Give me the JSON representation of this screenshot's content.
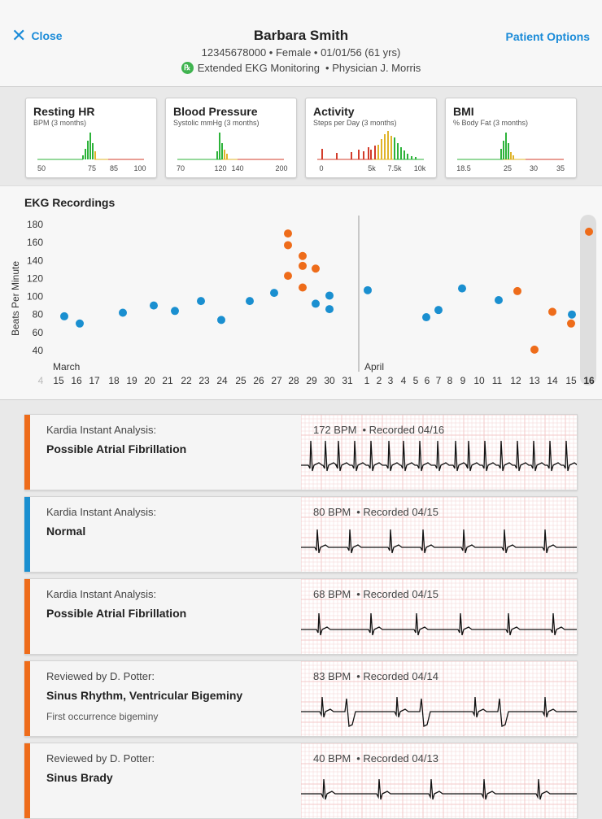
{
  "header": {
    "close_label": "Close",
    "options_label": "Patient Options",
    "patient_name": "Barbara Smith",
    "patient_info": "12345678000  •  Female  •  01/01/56 (61 yrs)",
    "monitoring": "Extended EKG Monitoring",
    "physician": "•  Physician J. Morris",
    "rx_glyph": "℞"
  },
  "cards": [
    {
      "title": "Resting HR",
      "subtitle": "BPM (3 months)",
      "ticks": [
        "50",
        "75",
        "85",
        "100"
      ]
    },
    {
      "title": "Blood Pressure",
      "subtitle": "Systolic mmHg (3 months)",
      "ticks": [
        "70",
        "120",
        "140",
        "200"
      ]
    },
    {
      "title": "Activity",
      "subtitle": "Steps per Day (3 months)",
      "ticks": [
        "0",
        "5k",
        "7.5k",
        "10k"
      ]
    },
    {
      "title": "BMI",
      "subtitle": "% Body Fat (3 months)",
      "ticks": [
        "18.5",
        "25",
        "30",
        "35"
      ]
    }
  ],
  "ekg_chart": {
    "title": "EKG Recordings",
    "ylabel": "Beats Per Minute",
    "ylim": [
      40,
      180
    ],
    "yticks": [
      "180",
      "160",
      "140",
      "120",
      "100",
      "80",
      "60",
      "40"
    ],
    "month_labels": [
      "March",
      "April"
    ],
    "x_labels": [
      "4",
      "15",
      "16",
      "17",
      "18",
      "19",
      "20",
      "21",
      "22",
      "23",
      "24",
      "25",
      "26",
      "27",
      "28",
      "29",
      "30",
      "31",
      "1",
      "2",
      "3",
      "4",
      "5",
      "6",
      "7",
      "8",
      "9",
      "10",
      "11",
      "12",
      "13",
      "14",
      "15",
      "16"
    ],
    "colors": {
      "normal": "#1a8fd0",
      "flagged": "#ee6c1a"
    },
    "points": [
      {
        "day": "Mar 15",
        "bpm": 78,
        "status": "normal"
      },
      {
        "day": "Mar 16",
        "bpm": 70,
        "status": "normal"
      },
      {
        "day": "Mar 19",
        "bpm": 82,
        "status": "normal"
      },
      {
        "day": "Mar 20",
        "bpm": 90,
        "status": "normal"
      },
      {
        "day": "Mar 21",
        "bpm": 84,
        "status": "normal"
      },
      {
        "day": "Mar 23",
        "bpm": 95,
        "status": "normal"
      },
      {
        "day": "Mar 24",
        "bpm": 74,
        "status": "normal"
      },
      {
        "day": "Mar 26",
        "bpm": 95,
        "status": "normal"
      },
      {
        "day": "Mar 27",
        "bpm": 104,
        "status": "normal"
      },
      {
        "day": "Mar 28",
        "bpm": 170,
        "status": "flagged"
      },
      {
        "day": "Mar 28",
        "bpm": 157,
        "status": "flagged"
      },
      {
        "day": "Mar 28",
        "bpm": 123,
        "status": "flagged"
      },
      {
        "day": "Mar 29",
        "bpm": 145,
        "status": "flagged"
      },
      {
        "day": "Mar 29",
        "bpm": 134,
        "status": "flagged"
      },
      {
        "day": "Mar 29",
        "bpm": 110,
        "status": "flagged"
      },
      {
        "day": "Mar 30",
        "bpm": 131,
        "status": "flagged"
      },
      {
        "day": "Mar 30",
        "bpm": 92,
        "status": "normal"
      },
      {
        "day": "Mar 31",
        "bpm": 101,
        "status": "normal"
      },
      {
        "day": "Mar 31",
        "bpm": 86,
        "status": "normal"
      },
      {
        "day": "Apr 1",
        "bpm": 107,
        "status": "normal"
      },
      {
        "day": "Apr 5",
        "bpm": 77,
        "status": "normal"
      },
      {
        "day": "Apr 6",
        "bpm": 85,
        "status": "normal"
      },
      {
        "day": "Apr 8",
        "bpm": 109,
        "status": "normal"
      },
      {
        "day": "Apr 10",
        "bpm": 96,
        "status": "normal"
      },
      {
        "day": "Apr 11",
        "bpm": 106,
        "status": "flagged"
      },
      {
        "day": "Apr 12",
        "bpm": 41,
        "status": "flagged"
      },
      {
        "day": "Apr 13",
        "bpm": 83,
        "status": "flagged"
      },
      {
        "day": "Apr 14",
        "bpm": 80,
        "status": "normal"
      },
      {
        "day": "Apr 14",
        "bpm": 70,
        "status": "flagged"
      },
      {
        "day": "Apr 16",
        "bpm": 172,
        "status": "flagged"
      }
    ]
  },
  "recordings": [
    {
      "label": "Kardia Instant Analysis:",
      "diagnosis": "Possible Atrial Fibrillation",
      "note": "",
      "bpm": "172 BPM",
      "recorded": "•  Recorded 04/16",
      "status": "flagged"
    },
    {
      "label": "Kardia Instant Analysis:",
      "diagnosis": "Normal",
      "note": "",
      "bpm": "80 BPM",
      "recorded": "•  Recorded 04/15",
      "status": "normal"
    },
    {
      "label": "Kardia Instant Analysis:",
      "diagnosis": "Possible Atrial Fibrillation",
      "note": "",
      "bpm": "68 BPM",
      "recorded": "•  Recorded 04/15",
      "status": "flagged"
    },
    {
      "label": "Reviewed by D. Potter:",
      "diagnosis": "Sinus Rhythm, Ventricular Bigeminy",
      "note": "First occurrence bigeminy",
      "bpm": "83 BPM",
      "recorded": "•  Recorded 04/14",
      "status": "flagged"
    },
    {
      "label": "Reviewed by D. Potter:",
      "diagnosis": "Sinus Brady",
      "note": "",
      "bpm": "40 BPM",
      "recorded": "•  Recorded 04/13",
      "status": "flagged"
    }
  ]
}
